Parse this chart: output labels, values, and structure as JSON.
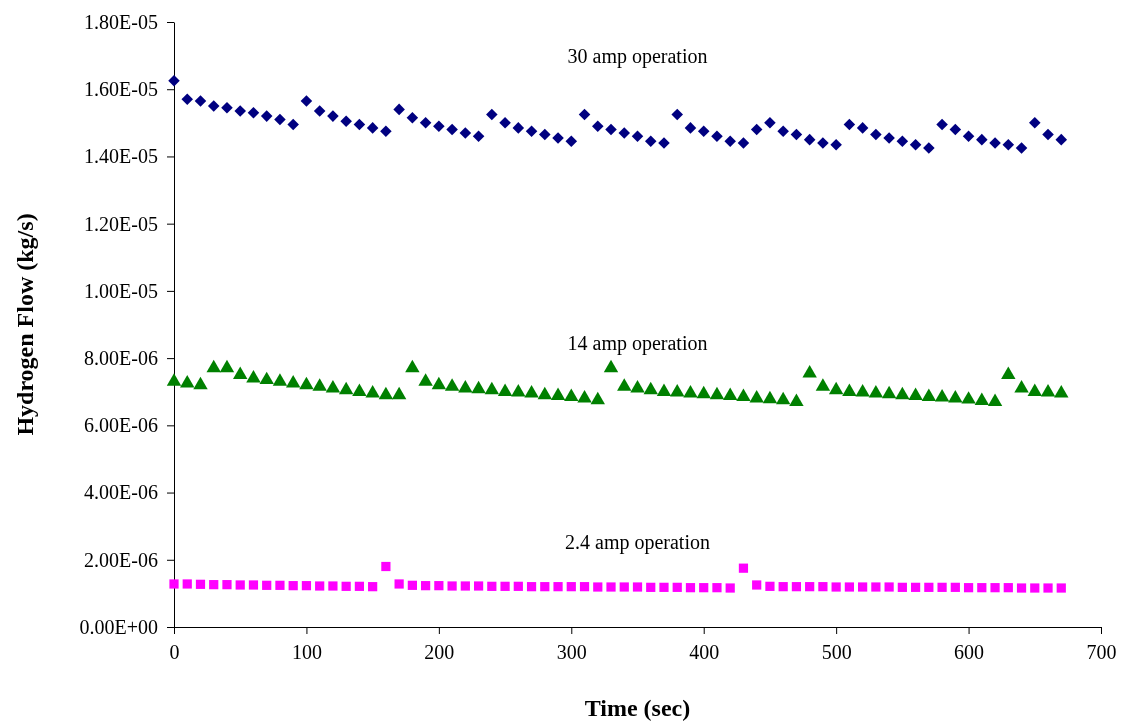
{
  "chart_data": {
    "type": "scatter",
    "xlabel": "Time (sec)",
    "ylabel": "Hydrogen Flow (kg/s)",
    "x": [
      0,
      10,
      20,
      30,
      40,
      50,
      60,
      70,
      80,
      90,
      100,
      110,
      120,
      130,
      140,
      150,
      160,
      170,
      180,
      190,
      200,
      210,
      220,
      230,
      240,
      250,
      260,
      270,
      280,
      290,
      300,
      310,
      320,
      330,
      340,
      350,
      360,
      370,
      380,
      390,
      400,
      410,
      420,
      430,
      440,
      450,
      460,
      470,
      480,
      490,
      500,
      510,
      520,
      530,
      540,
      550,
      560,
      570,
      580,
      590,
      600,
      610,
      620,
      630,
      640,
      650,
      660,
      670
    ],
    "series": [
      {
        "name": "30 amp operation",
        "color": "#000080",
        "marker": "diamond",
        "values": [
          1.625e-05,
          1.57e-05,
          1.565e-05,
          1.55e-05,
          1.545e-05,
          1.535e-05,
          1.53e-05,
          1.52e-05,
          1.51e-05,
          1.495e-05,
          1.565e-05,
          1.535e-05,
          1.52e-05,
          1.505e-05,
          1.495e-05,
          1.485e-05,
          1.475e-05,
          1.54e-05,
          1.515e-05,
          1.5e-05,
          1.49e-05,
          1.48e-05,
          1.47e-05,
          1.46e-05,
          1.525e-05,
          1.5e-05,
          1.485e-05,
          1.475e-05,
          1.465e-05,
          1.455e-05,
          1.445e-05,
          1.525e-05,
          1.49e-05,
          1.48e-05,
          1.47e-05,
          1.46e-05,
          1.445e-05,
          1.44e-05,
          1.525e-05,
          1.485e-05,
          1.475e-05,
          1.46e-05,
          1.445e-05,
          1.44e-05,
          1.48e-05,
          1.5e-05,
          1.475e-05,
          1.465e-05,
          1.45e-05,
          1.44e-05,
          1.435e-05,
          1.495e-05,
          1.485e-05,
          1.465e-05,
          1.455e-05,
          1.445e-05,
          1.435e-05,
          1.425e-05,
          1.495e-05,
          1.48e-05,
          1.46e-05,
          1.45e-05,
          1.44e-05,
          1.435e-05,
          1.425e-05,
          1.5e-05,
          1.465e-05,
          1.45e-05
        ]
      },
      {
        "name": "14 amp operation",
        "color": "#008000",
        "marker": "triangle",
        "values": [
          7.3e-06,
          7.25e-06,
          7.2e-06,
          7.7e-06,
          7.7e-06,
          7.5e-06,
          7.4e-06,
          7.35e-06,
          7.3e-06,
          7.25e-06,
          7.2e-06,
          7.15e-06,
          7.1e-06,
          7.05e-06,
          7e-06,
          6.95e-06,
          6.9e-06,
          6.9e-06,
          7.7e-06,
          7.3e-06,
          7.2e-06,
          7.15e-06,
          7.1e-06,
          7.08e-06,
          7.05e-06,
          7e-06,
          6.98e-06,
          6.95e-06,
          6.9e-06,
          6.88e-06,
          6.85e-06,
          6.8e-06,
          6.75e-06,
          7.7e-06,
          7.15e-06,
          7.1e-06,
          7.05e-06,
          7e-06,
          6.98e-06,
          6.95e-06,
          6.93e-06,
          6.9e-06,
          6.88e-06,
          6.85e-06,
          6.8e-06,
          6.78e-06,
          6.75e-06,
          6.7e-06,
          7.55e-06,
          7.15e-06,
          7.05e-06,
          7e-06,
          6.98e-06,
          6.95e-06,
          6.93e-06,
          6.9e-06,
          6.88e-06,
          6.85e-06,
          6.83e-06,
          6.8e-06,
          6.77e-06,
          6.73e-06,
          6.7e-06,
          7.5e-06,
          7.1e-06,
          7e-06,
          6.98e-06,
          6.95e-06
        ]
      },
      {
        "name": "2.4 amp operation",
        "color": "#ff00ff",
        "marker": "square",
        "values": [
          1.28e-06,
          1.28e-06,
          1.27e-06,
          1.26e-06,
          1.26e-06,
          1.25e-06,
          1.25e-06,
          1.24e-06,
          1.24e-06,
          1.23e-06,
          1.23e-06,
          1.22e-06,
          1.22e-06,
          1.21e-06,
          1.21e-06,
          1.2e-06,
          1.8e-06,
          1.28e-06,
          1.24e-06,
          1.23e-06,
          1.23e-06,
          1.22e-06,
          1.22e-06,
          1.22e-06,
          1.21e-06,
          1.21e-06,
          1.21e-06,
          1.2e-06,
          1.2e-06,
          1.2e-06,
          1.2e-06,
          1.2e-06,
          1.19e-06,
          1.19e-06,
          1.19e-06,
          1.19e-06,
          1.18e-06,
          1.18e-06,
          1.18e-06,
          1.17e-06,
          1.17e-06,
          1.17e-06,
          1.16e-06,
          1.75e-06,
          1.25e-06,
          1.21e-06,
          1.2e-06,
          1.2e-06,
          1.2e-06,
          1.2e-06,
          1.19e-06,
          1.19e-06,
          1.19e-06,
          1.19e-06,
          1.19e-06,
          1.18e-06,
          1.18e-06,
          1.18e-06,
          1.18e-06,
          1.18e-06,
          1.17e-06,
          1.17e-06,
          1.17e-06,
          1.17e-06,
          1.16e-06,
          1.16e-06,
          1.16e-06,
          1.16e-06
        ]
      }
    ],
    "xlim": [
      0,
      700
    ],
    "xticks": [
      0,
      100,
      200,
      300,
      400,
      500,
      600,
      700
    ],
    "ylim": [
      0,
      1.8e-05
    ],
    "yticks": [
      {
        "value": 0,
        "label": "0.00E+00"
      },
      {
        "value": 2e-06,
        "label": "2.00E-06"
      },
      {
        "value": 4e-06,
        "label": "4.00E-06"
      },
      {
        "value": 6e-06,
        "label": "6.00E-06"
      },
      {
        "value": 8e-06,
        "label": "8.00E-06"
      },
      {
        "value": 1e-05,
        "label": "1.00E-05"
      },
      {
        "value": 1.2e-05,
        "label": "1.20E-05"
      },
      {
        "value": 1.4e-05,
        "label": "1.40E-05"
      },
      {
        "value": 1.6e-05,
        "label": "1.60E-05"
      },
      {
        "value": 1.8e-05,
        "label": "1.80E-05"
      }
    ],
    "grid": false
  }
}
